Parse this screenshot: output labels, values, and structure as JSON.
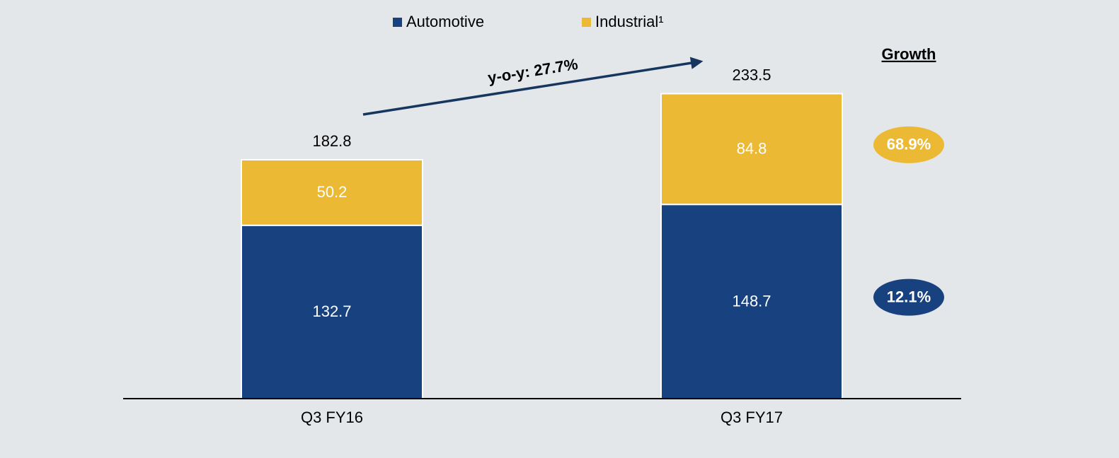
{
  "chart_data": {
    "type": "stacked_bar",
    "categories": [
      "Q3 FY16",
      "Q3 FY17"
    ],
    "series": [
      {
        "name": "Automotive",
        "color": "#17427f",
        "values": [
          132.7,
          148.7
        ],
        "growth": "12.1%"
      },
      {
        "name": "Industrial¹",
        "color": "#ebb933",
        "values": [
          50.2,
          84.8
        ],
        "growth": "68.9%"
      }
    ],
    "totals": [
      182.8,
      233.5
    ],
    "annotation": "y-o-y: 27.7%",
    "growth_title": "Growth",
    "ylim": [
      0,
      250
    ]
  }
}
